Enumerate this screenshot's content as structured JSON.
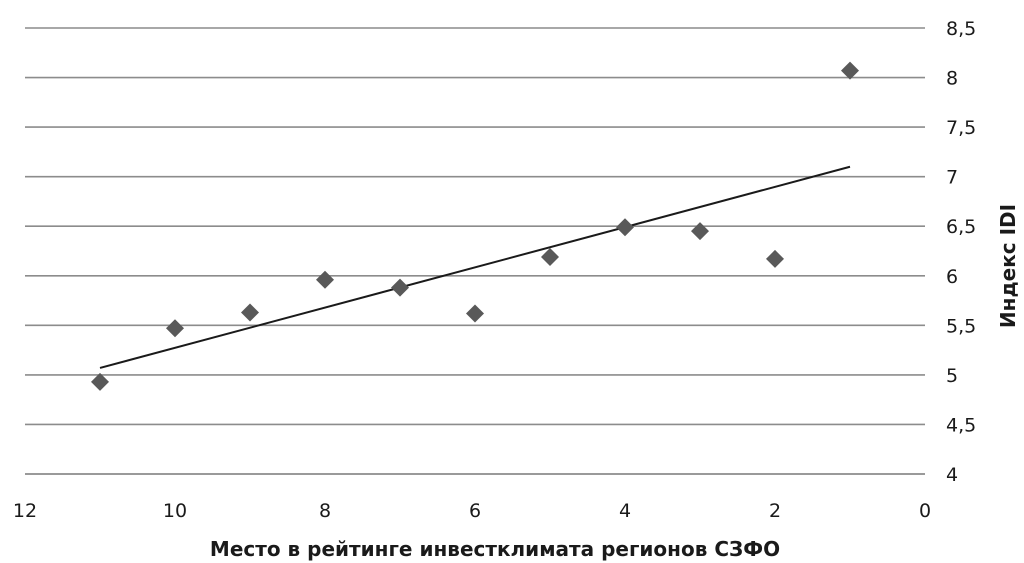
{
  "chart_data": {
    "type": "scatter",
    "title": "",
    "xlabel": "Место в рейтинге инвестклимата  регионов СЗФО",
    "ylabel": "Индекс IDI",
    "xlim": [
      0,
      12
    ],
    "ylim": [
      4,
      8.5
    ],
    "x_reversed": true,
    "y_axis_position": "right",
    "grid": "horizontal",
    "legend": "none",
    "x_ticks": [
      "12",
      "10",
      "8",
      "6",
      "4",
      "2",
      "0"
    ],
    "y_ticks": [
      "4",
      "4,5",
      "5",
      "5,5",
      "6",
      "6,5",
      "7",
      "7,5",
      "8",
      "8,5"
    ],
    "x_tick_values": [
      12,
      10,
      8,
      6,
      4,
      2,
      0
    ],
    "y_tick_values": [
      4,
      4.5,
      5,
      5.5,
      6,
      6.5,
      7,
      7.5,
      8,
      8.5
    ],
    "series": [
      {
        "x": [
          11,
          10,
          9,
          8,
          7,
          6,
          5,
          4,
          3,
          2,
          1
        ],
        "y": [
          4.93,
          5.47,
          5.63,
          5.96,
          5.88,
          5.62,
          6.19,
          6.49,
          6.45,
          6.17,
          8.07
        ],
        "marker": "diamond",
        "color": "#595959"
      }
    ],
    "trendline": {
      "type": "linear",
      "x": [
        11,
        1
      ],
      "y": [
        5.07,
        7.1
      ],
      "color": "#1a1a1a"
    }
  }
}
